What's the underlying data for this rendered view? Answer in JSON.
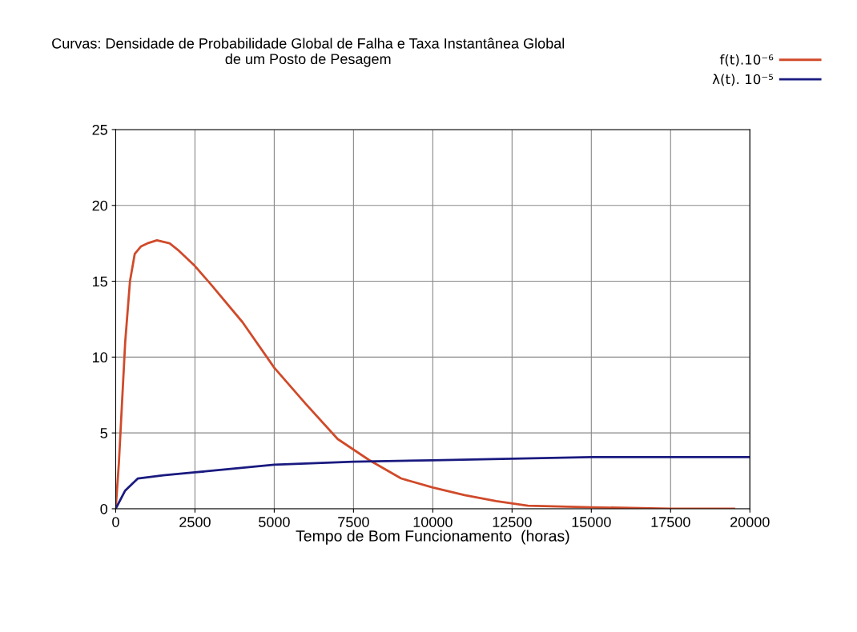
{
  "chart_data": {
    "type": "line",
    "title": "Curvas: Densidade de Probabilidade Global de Falha e Taxa Instantânea Global\nde um Posto de Pesagem",
    "xlabel": "Tempo de Bom Funcionamento  (horas)",
    "xlim": [
      0,
      20000
    ],
    "xticks": [
      0,
      2500,
      5000,
      7500,
      10000,
      12500,
      15000,
      17500,
      20000
    ],
    "ylim": [
      0,
      25
    ],
    "yticks": [
      0,
      5,
      10,
      15,
      20,
      25
    ],
    "grid": true,
    "legend": "top right",
    "line_style": "solid",
    "marker": "none",
    "series": [
      {
        "name": "f(t).10⁻⁶",
        "color": "#d04a2a",
        "x": [
          0,
          100,
          200,
          300,
          450,
          600,
          800,
          1000,
          1300,
          1700,
          2000,
          2500,
          3000,
          4000,
          5000,
          6000,
          7000,
          8000,
          9000,
          10000,
          11000,
          12000,
          13000,
          15000,
          17500,
          19500
        ],
        "values": [
          0,
          3,
          7,
          11,
          15,
          16.8,
          17.3,
          17.5,
          17.7,
          17.5,
          17.0,
          16.0,
          14.8,
          12.3,
          9.3,
          6.9,
          4.6,
          3.2,
          2.0,
          1.4,
          0.9,
          0.5,
          0.2,
          0.1,
          0,
          0
        ]
      },
      {
        "name": "λ(t). 10⁻⁵",
        "color": "#1a1a80",
        "x": [
          0,
          300,
          700,
          1500,
          2500,
          5000,
          7500,
          10000,
          12500,
          15000,
          20000
        ],
        "values": [
          0,
          1.2,
          2.0,
          2.2,
          2.4,
          2.9,
          3.1,
          3.2,
          3.3,
          3.4,
          3.4
        ]
      }
    ]
  }
}
